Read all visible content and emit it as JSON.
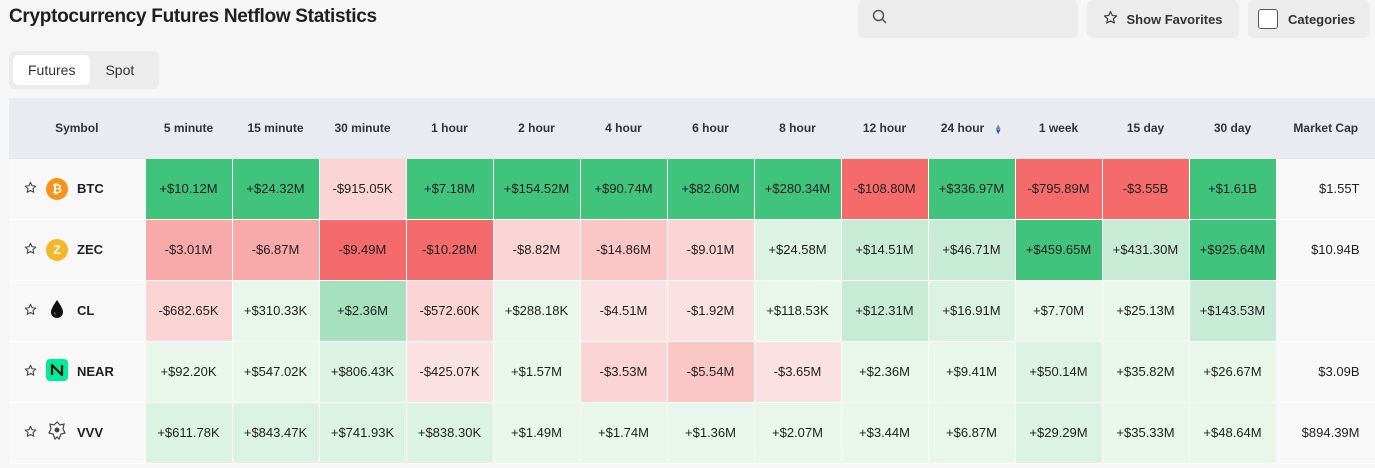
{
  "header": {
    "title": "Cryptocurrency Futures Netflow Statistics",
    "search_placeholder": "",
    "favorites_label": "Show Favorites",
    "categories_label": "Categories"
  },
  "tabs": [
    {
      "label": "Futures",
      "active": true
    },
    {
      "label": "Spot",
      "active": false
    }
  ],
  "table": {
    "columns": [
      "Symbol",
      "5 minute",
      "15 minute",
      "30 minute",
      "1 hour",
      "2 hour",
      "4 hour",
      "6 hour",
      "8 hour",
      "12 hour",
      "24 hour",
      "1 week",
      "15 day",
      "30 day",
      "Market Cap"
    ],
    "sorted_column": "24 hour",
    "rows": [
      {
        "symbol": "BTC",
        "icon": "bitcoin-icon",
        "cells": [
          {
            "v": "+$10.12M",
            "c": "#40c47c"
          },
          {
            "v": "+$24.32M",
            "c": "#40c47c"
          },
          {
            "v": "-$915.05K",
            "c": "#fbd5d5"
          },
          {
            "v": "+$7.18M",
            "c": "#40c47c"
          },
          {
            "v": "+$154.52M",
            "c": "#40c47c"
          },
          {
            "v": "+$90.74M",
            "c": "#40c47c"
          },
          {
            "v": "+$82.60M",
            "c": "#40c47c"
          },
          {
            "v": "+$280.34M",
            "c": "#40c47c"
          },
          {
            "v": "-$108.80M",
            "c": "#f56b6b"
          },
          {
            "v": "+$336.97M",
            "c": "#40c47c"
          },
          {
            "v": "-$795.89M",
            "c": "#f56b6b"
          },
          {
            "v": "-$3.55B",
            "c": "#f56b6b"
          },
          {
            "v": "+$1.61B",
            "c": "#40c47c"
          }
        ],
        "market_cap": "$1.55T"
      },
      {
        "symbol": "ZEC",
        "icon": "zcash-icon",
        "cells": [
          {
            "v": "-$3.01M",
            "c": "#f8a9a9"
          },
          {
            "v": "-$6.87M",
            "c": "#f8a9a9"
          },
          {
            "v": "-$9.49M",
            "c": "#f56b6b"
          },
          {
            "v": "-$10.28M",
            "c": "#f56b6b"
          },
          {
            "v": "-$8.82M",
            "c": "#fbd5d5"
          },
          {
            "v": "-$14.86M",
            "c": "#fbc6c6"
          },
          {
            "v": "-$9.01M",
            "c": "#fbd5d5"
          },
          {
            "v": "+$24.58M",
            "c": "#dcf2e4"
          },
          {
            "v": "+$14.51M",
            "c": "#c8ebd5"
          },
          {
            "v": "+$46.71M",
            "c": "#c8ebd5"
          },
          {
            "v": "+$459.65M",
            "c": "#40c47c"
          },
          {
            "v": "+$431.30M",
            "c": "#c8ebd5"
          },
          {
            "v": "+$925.64M",
            "c": "#40c47c"
          }
        ],
        "market_cap": "$10.94B"
      },
      {
        "symbol": "CL",
        "icon": "oil-drop-icon",
        "cells": [
          {
            "v": "-$682.65K",
            "c": "#fbd5d5"
          },
          {
            "v": "+$310.33K",
            "c": "#e8f6ec"
          },
          {
            "v": "+$2.36M",
            "c": "#a6e0bd"
          },
          {
            "v": "-$572.60K",
            "c": "#fbd5d5"
          },
          {
            "v": "+$288.18K",
            "c": "#e8f6ec"
          },
          {
            "v": "-$4.51M",
            "c": "#fbe1e1"
          },
          {
            "v": "-$1.92M",
            "c": "#fbe1e1"
          },
          {
            "v": "+$118.53K",
            "c": "#e8f6ec"
          },
          {
            "v": "+$12.31M",
            "c": "#c8ebd5"
          },
          {
            "v": "+$16.91M",
            "c": "#dcf2e4"
          },
          {
            "v": "+$7.70M",
            "c": "#e8f6ec"
          },
          {
            "v": "+$25.13M",
            "c": "#e8f6ec"
          },
          {
            "v": "+$143.53M",
            "c": "#c8ebd5"
          }
        ],
        "market_cap": ""
      },
      {
        "symbol": "NEAR",
        "icon": "near-icon",
        "cells": [
          {
            "v": "+$92.20K",
            "c": "#e8f6ec"
          },
          {
            "v": "+$547.02K",
            "c": "#e8f6ec"
          },
          {
            "v": "+$806.43K",
            "c": "#dcf2e4"
          },
          {
            "v": "-$425.07K",
            "c": "#fbe1e1"
          },
          {
            "v": "+$1.57M",
            "c": "#e8f6ec"
          },
          {
            "v": "-$3.53M",
            "c": "#fbd5d5"
          },
          {
            "v": "-$5.54M",
            "c": "#fbc6c6"
          },
          {
            "v": "-$3.65M",
            "c": "#fbe1e1"
          },
          {
            "v": "+$2.36M",
            "c": "#e8f6ec"
          },
          {
            "v": "+$9.41M",
            "c": "#e8f6ec"
          },
          {
            "v": "+$50.14M",
            "c": "#dcf2e4"
          },
          {
            "v": "+$35.82M",
            "c": "#e8f6ec"
          },
          {
            "v": "+$26.67M",
            "c": "#e8f6ec"
          }
        ],
        "market_cap": "$3.09B"
      },
      {
        "symbol": "VVV",
        "icon": "venice-icon",
        "cells": [
          {
            "v": "+$611.78K",
            "c": "#dcf2e4"
          },
          {
            "v": "+$843.47K",
            "c": "#dcf2e4"
          },
          {
            "v": "+$741.93K",
            "c": "#dcf2e4"
          },
          {
            "v": "+$838.30K",
            "c": "#dcf2e4"
          },
          {
            "v": "+$1.49M",
            "c": "#e8f6ec"
          },
          {
            "v": "+$1.74M",
            "c": "#e8f6ec"
          },
          {
            "v": "+$1.36M",
            "c": "#e8f6ec"
          },
          {
            "v": "+$2.07M",
            "c": "#e8f6ec"
          },
          {
            "v": "+$3.44M",
            "c": "#e8f6ec"
          },
          {
            "v": "+$6.87M",
            "c": "#e8f6ec"
          },
          {
            "v": "+$29.29M",
            "c": "#dcf2e4"
          },
          {
            "v": "+$35.33M",
            "c": "#e8f6ec"
          },
          {
            "v": "+$48.64M",
            "c": "#e8f6ec"
          }
        ],
        "market_cap": "$894.39M"
      }
    ]
  },
  "colors": {
    "strong_green": "#40c47c",
    "strong_red": "#f56b6b",
    "sort_active": "#1e5bd8",
    "btc": "#f7931a",
    "zec": "#f4b728",
    "near": "#00ec97"
  }
}
